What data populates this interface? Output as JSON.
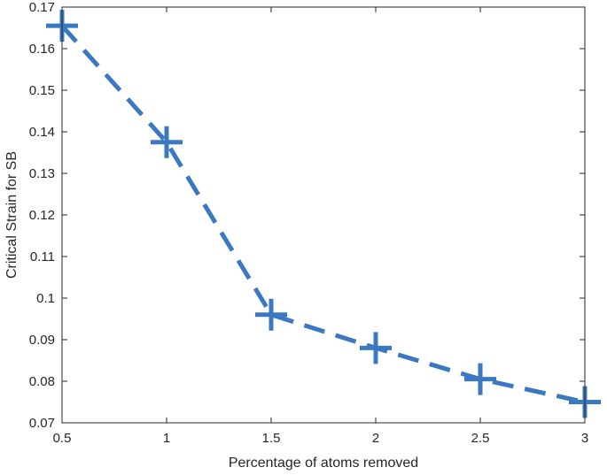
{
  "chart_data": {
    "type": "line",
    "title": "",
    "xlabel": "Percentage of atoms removed",
    "ylabel": "Critical Strain for SB",
    "xlim": [
      0.5,
      3
    ],
    "ylim": [
      0.07,
      0.17
    ],
    "xticks": [
      0.5,
      1,
      1.5,
      2,
      2.5,
      3
    ],
    "xtick_labels": [
      "0.5",
      "1",
      "1.5",
      "2",
      "2.5",
      "3"
    ],
    "yticks": [
      0.07,
      0.08,
      0.09,
      0.1,
      0.11,
      0.12,
      0.13,
      0.14,
      0.15,
      0.16,
      0.17
    ],
    "ytick_labels": [
      "0.07",
      "0.08",
      "0.09",
      "0.1",
      "0.11",
      "0.12",
      "0.13",
      "0.14",
      "0.15",
      "0.16",
      "0.17"
    ],
    "grid": false,
    "legend": "none",
    "series": [
      {
        "x": [
          0.5,
          1,
          1.5,
          2,
          2.5,
          3
        ],
        "y": [
          0.1655,
          0.1375,
          0.096,
          0.088,
          0.0805,
          0.075
        ],
        "line_style": "dashed",
        "marker": "plus",
        "color": "#3a78c2"
      }
    ]
  }
}
